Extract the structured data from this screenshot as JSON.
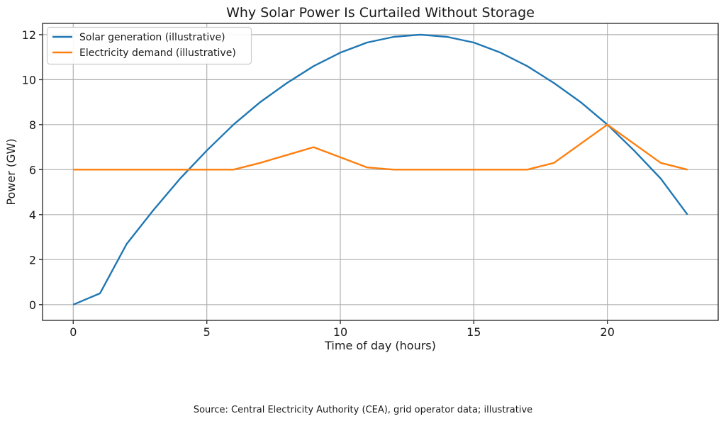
{
  "chart_data": {
    "type": "line",
    "title": "Why Solar Power Is Curtailed Without Storage",
    "xlabel": "Time of day (hours)",
    "ylabel": "Power (GW)",
    "x": [
      0,
      1,
      2,
      3,
      4,
      5,
      6,
      7,
      8,
      9,
      10,
      11,
      12,
      13,
      14,
      15,
      16,
      17,
      18,
      19,
      20,
      21,
      22,
      23
    ],
    "series": [
      {
        "id": "solar-generation",
        "name": "Solar generation (illustrative)",
        "color": "#1f77b4",
        "values": [
          0,
          0.5,
          2.7,
          4.2,
          5.6,
          6.85,
          8.0,
          9.0,
          9.85,
          10.6,
          11.2,
          11.65,
          11.9,
          12.0,
          11.9,
          11.65,
          11.2,
          10.6,
          9.85,
          9.0,
          8.0,
          6.85,
          5.6,
          4.0
        ]
      },
      {
        "id": "electricity-demand",
        "name": "Electricity demand (illustrative)",
        "color": "#ff7f0e",
        "values": [
          6,
          6,
          6,
          6,
          6,
          6,
          6,
          6.3,
          6.65,
          7.0,
          6.55,
          6.1,
          6,
          6,
          6,
          6,
          6,
          6,
          6.3,
          7.15,
          8.0,
          7.15,
          6.3,
          6.0
        ]
      }
    ],
    "xticks": [
      0,
      5,
      10,
      15,
      20
    ],
    "yticks": [
      0,
      2,
      4,
      6,
      8,
      10,
      12
    ],
    "xlim": [
      -1.15,
      24.15
    ],
    "ylim": [
      -0.7,
      12.5
    ],
    "grid": true,
    "legend_position": "upper left"
  },
  "source_note": "Source: Central Electricity Authority (CEA), grid operator data; illustrative",
  "colors": {
    "background": "#ffffff",
    "grid": "#b0b0b0",
    "spine": "#333333",
    "text": "#1a1a1a",
    "solar_line": "#1f77b4",
    "demand_line": "#ff7f0e"
  }
}
